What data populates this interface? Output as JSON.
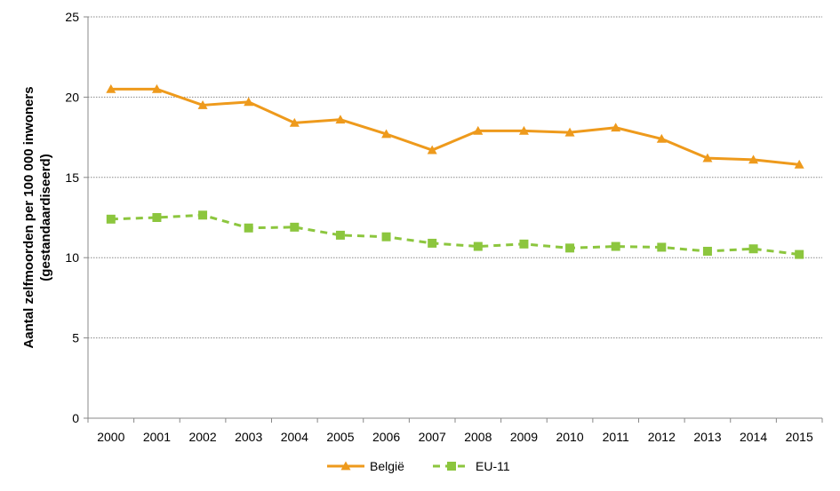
{
  "chart_data": {
    "type": "line",
    "x": [
      "2000",
      "2001",
      "2002",
      "2003",
      "2004",
      "2005",
      "2006",
      "2007",
      "2008",
      "2009",
      "2010",
      "2011",
      "2012",
      "2013",
      "2014",
      "2015"
    ],
    "series": [
      {
        "name": "België",
        "color": "#ee9a1c",
        "marker": "triangle",
        "style": "solid",
        "values": [
          20.5,
          20.5,
          19.5,
          19.7,
          18.4,
          18.6,
          17.7,
          16.7,
          17.9,
          17.9,
          17.8,
          18.1,
          17.4,
          16.2,
          16.1,
          15.8
        ]
      },
      {
        "name": "EU-11",
        "color": "#8cc63e",
        "marker": "square",
        "style": "dashed",
        "values": [
          12.4,
          12.5,
          12.65,
          11.85,
          11.9,
          11.4,
          11.3,
          10.9,
          10.7,
          10.85,
          10.6,
          10.7,
          10.65,
          10.4,
          10.55,
          10.2
        ]
      }
    ],
    "ylabel_line1": "Aantal zelfmoorden per 100 000 inwoners",
    "ylabel_line2": "(gestandaardiseerd)",
    "ylim": [
      0,
      25
    ],
    "yticks": [
      0,
      5,
      10,
      15,
      20,
      25
    ],
    "grid": true,
    "legend": "bottom"
  }
}
